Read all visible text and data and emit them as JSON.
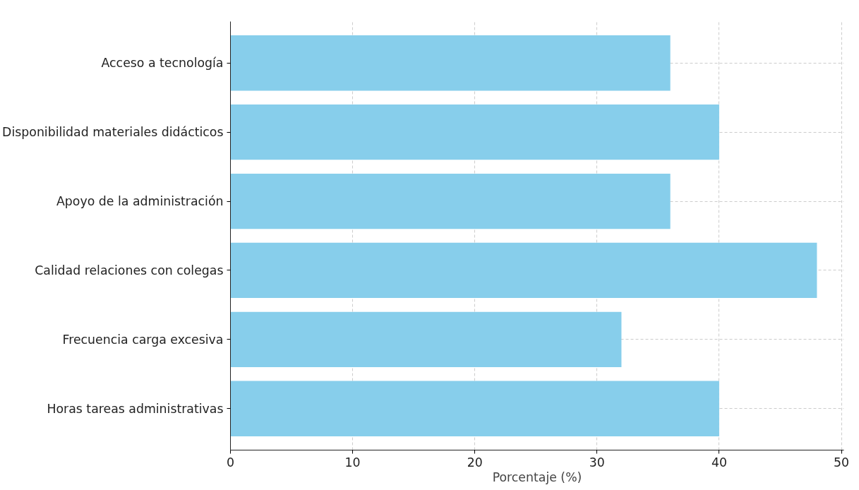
{
  "chart_data": {
    "type": "bar",
    "orientation": "horizontal",
    "categories": [
      "Acceso a tecnología",
      "Disponibilidad materiales didácticos",
      "Apoyo de la administración",
      "Calidad relaciones con colegas",
      "Frecuencia carga excesiva",
      "Horas tareas administrativas"
    ],
    "values": [
      36,
      40,
      36,
      48,
      32,
      40
    ],
    "color": "#87ceeb",
    "xlabel": "Porcentaje (%)",
    "xlim": [
      0,
      50.2
    ],
    "xticks": [
      0,
      10,
      20,
      30,
      40,
      50
    ],
    "grid": true
  }
}
